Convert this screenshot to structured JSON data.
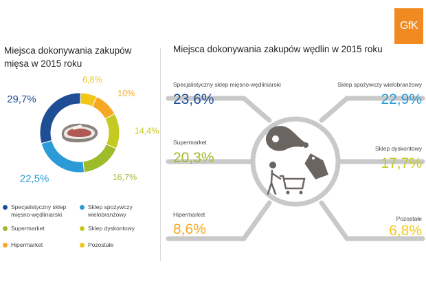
{
  "logo": "GfK",
  "left_title": "Miejsca dokonywania zakupów mięsa w 2015 roku",
  "right_title": "Miejsca dokonywania zakupów wędlin w 2015 roku",
  "colors": {
    "specjalistyczny": "#1f4e96",
    "spozywczy": "#2b9bd8",
    "supermarket": "#9ebb2a",
    "dyskontowy": "#c5c920",
    "hipermarket": "#f7a823",
    "pozostale": "#f2c718",
    "brand": "#f18a21"
  },
  "legend": [
    {
      "label": "Specjalistyczny sklep mięsno-wędliniarski",
      "key": "specjalistyczny"
    },
    {
      "label": "Sklep spożywczy wielobranżowy",
      "key": "spozywczy"
    },
    {
      "label": "Supermarket",
      "key": "supermarket"
    },
    {
      "label": "Sklep dyskontowy",
      "key": "dyskontowy"
    },
    {
      "label": "Hipermarket",
      "key": "hipermarket"
    },
    {
      "label": "Pozostałe",
      "key": "pozostale"
    }
  ],
  "chart_data": [
    {
      "type": "pie",
      "title": "Miejsca dokonywania zakupów mięsa w 2015 roku",
      "slices": [
        {
          "name": "Specjalistyczny sklep mięsno-wędliniarski",
          "value": 29.7,
          "label": "29,7%",
          "color": "#1f4e96"
        },
        {
          "name": "Sklep spożywczy wielobranżowy",
          "value": 22.5,
          "label": "22,5%",
          "color": "#2b9bd8"
        },
        {
          "name": "Supermarket",
          "value": 16.7,
          "label": "16,7%",
          "color": "#9ebb2a"
        },
        {
          "name": "Sklep dyskontowy",
          "value": 14.4,
          "label": "14,4%",
          "color": "#c5c920"
        },
        {
          "name": "Hipermarket",
          "value": 10,
          "label": "10%",
          "color": "#f7a823"
        },
        {
          "name": "Pozostałe",
          "value": 6.8,
          "label": "6,8%",
          "color": "#f2c718"
        }
      ],
      "icon": "meat-steak-icon"
    },
    {
      "type": "table",
      "title": "Miejsca dokonywania zakupów wędlin w 2015 roku",
      "rows": [
        {
          "name": "Specjalistyczny sklep mięsno-wędliniarski",
          "value": 23.6,
          "label": "23,6%",
          "color": "#1f4e96"
        },
        {
          "name": "Sklep spożywczy wielobranżowy",
          "value": 22.9,
          "label": "22,9%",
          "color": "#2b9bd8"
        },
        {
          "name": "Supermarket",
          "value": 20.3,
          "label": "20,3%",
          "color": "#9ebb2a"
        },
        {
          "name": "Sklep dyskontowy",
          "value": 17.7,
          "label": "17,7%",
          "color": "#c5c920"
        },
        {
          "name": "Hipermarket",
          "value": 8.6,
          "label": "8,6%",
          "color": "#f7a823"
        },
        {
          "name": "Pozostałe",
          "value": 6.8,
          "label": "6,8%",
          "color": "#f2c718"
        }
      ],
      "icons": [
        "ham-icon",
        "shopping-cart-icon",
        "price-tag-icon"
      ]
    }
  ]
}
